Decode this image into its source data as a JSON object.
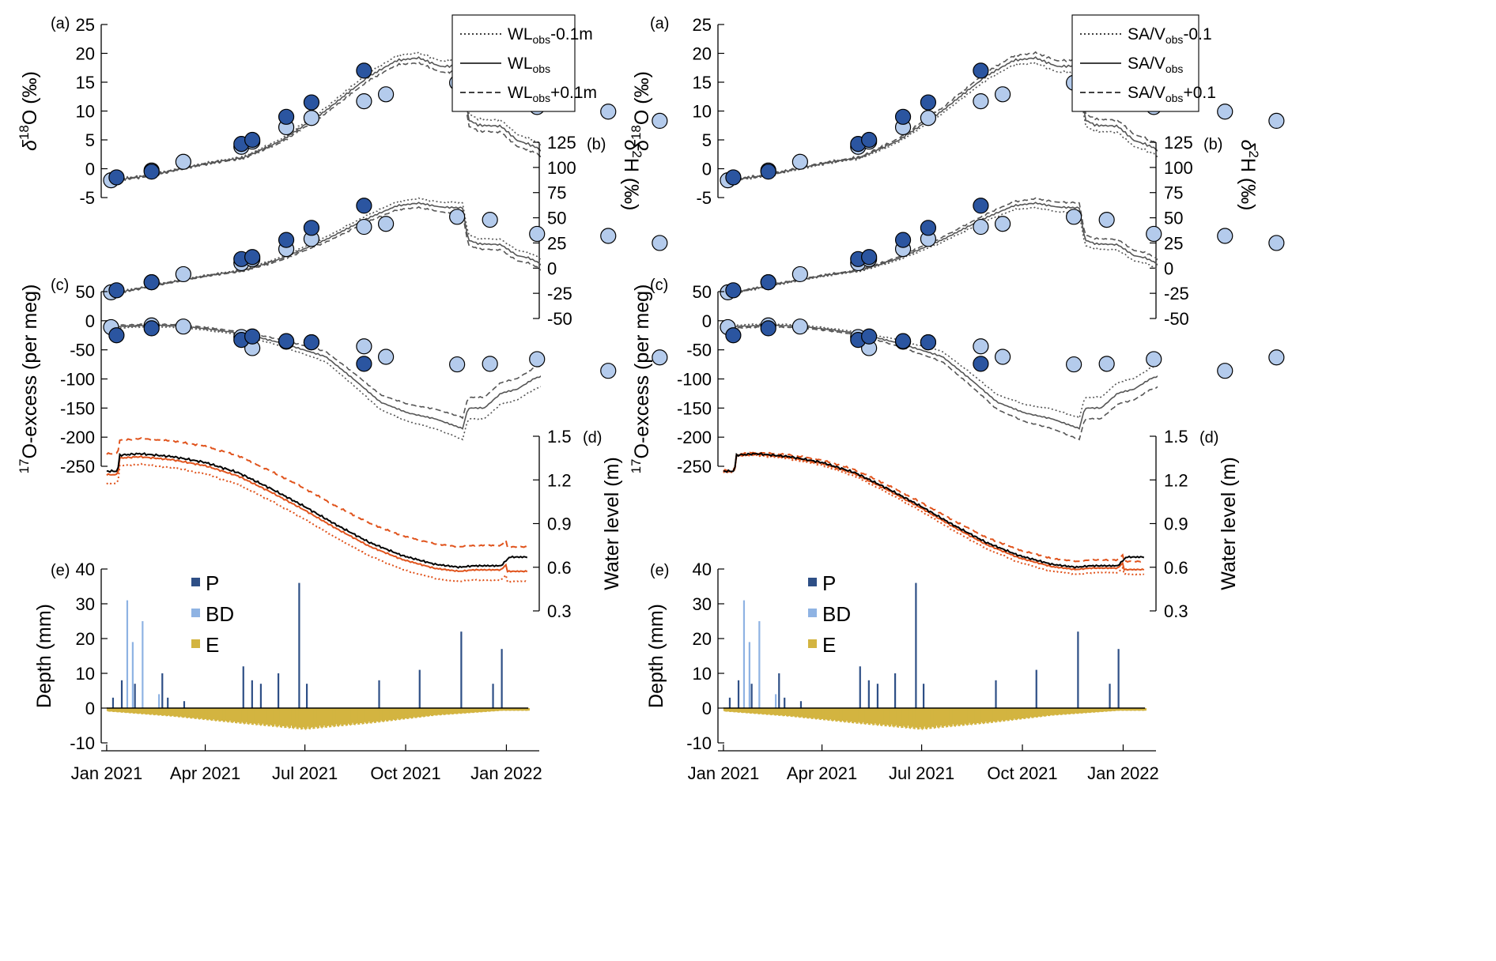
{
  "colors": {
    "dark_point": "#2b55a0",
    "light_point": "#b4cbec",
    "model_grey": "#555555",
    "observed_wl": "#000000",
    "model_wl": "#e0531c",
    "precip": "#2e4f86",
    "bd": "#8fb3e3",
    "evap": "#d3b440"
  },
  "time_axis": {
    "tick_labels": [
      "Jan 2021",
      "Apr 2021",
      "Jul 2021",
      "Oct 2021",
      "Jan 2022"
    ],
    "tick_days": [
      0,
      90,
      181,
      273,
      365
    ],
    "range_days": [
      -5,
      395
    ]
  },
  "panel_tags": {
    "a": "(a)",
    "b": "(b)",
    "c": "(c)",
    "d": "(d)",
    "e": "(e)"
  },
  "axes": {
    "d18O": {
      "label_prefix": "δ",
      "label_sup": "18",
      "label_suffix": "O (‰)",
      "ylim": [
        -5,
        25
      ],
      "ticks": [
        "-5",
        "0",
        "5",
        "10",
        "15",
        "20",
        "25"
      ],
      "tick_values": [
        -5,
        0,
        5,
        10,
        15,
        20,
        25
      ]
    },
    "d2H": {
      "label_prefix": "δ",
      "label_sup": "2",
      "label_suffix": "H (‰)",
      "ylim": [
        -50,
        125
      ],
      "ticks": [
        "-50",
        "-25",
        "0",
        "25",
        "50",
        "75",
        "100",
        "125"
      ],
      "tick_values": [
        -50,
        -25,
        0,
        25,
        50,
        75,
        100,
        125
      ]
    },
    "o17": {
      "label_sup": "17",
      "label_suffix": "O-excess (per meg)",
      "ylim": [
        -250,
        50
      ],
      "ticks": [
        "-250",
        "-200",
        "-150",
        "-100",
        "-50",
        "0",
        "50"
      ],
      "tick_values": [
        -250,
        -200,
        -150,
        -100,
        -50,
        0,
        50
      ]
    },
    "wl": {
      "label": "Water level (m)",
      "ylim": [
        0.3,
        1.5
      ],
      "ticks": [
        "0.3",
        "0.6",
        "0.9",
        "1.2",
        "1.5"
      ],
      "tick_values": [
        0.3,
        0.6,
        0.9,
        1.2,
        1.5
      ]
    },
    "depth": {
      "label": "Depth (mm)",
      "ylim": [
        -10,
        40
      ],
      "ticks": [
        "-10",
        "0",
        "10",
        "20",
        "30",
        "40"
      ],
      "tick_values": [
        -10,
        0,
        10,
        20,
        30,
        40
      ]
    }
  },
  "legend_isotopes_left": [
    {
      "main": "WL",
      "sub": "obs",
      "suffix": "-0.1m",
      "style": "dotted"
    },
    {
      "main": "WL",
      "sub": "obs",
      "suffix": "",
      "style": "solid"
    },
    {
      "main": "WL",
      "sub": "obs",
      "suffix": "+0.1m",
      "style": "dashed"
    }
  ],
  "legend_isotopes_right": [
    {
      "main": "SA/V",
      "sub": "obs",
      "suffix": "-0.1",
      "style": "dotted"
    },
    {
      "main": "SA/V",
      "sub": "obs",
      "suffix": "",
      "style": "solid"
    },
    {
      "main": "SA/V",
      "sub": "obs",
      "suffix": "+0.1",
      "style": "dashed"
    }
  ],
  "legend_flux": [
    {
      "label": "P",
      "color_key": "precip"
    },
    {
      "label": "BD",
      "color_key": "bd"
    },
    {
      "label": "E",
      "color_key": "evap"
    }
  ],
  "chart_data": [
    {
      "type": "scatter",
      "title": "(a) δ18O",
      "ylabel": "δ18O (‰)",
      "ylim": [
        -5,
        25
      ],
      "series": [
        {
          "name": "dark points",
          "x": [
            9,
            41,
            123,
            133,
            164,
            187,
            235
          ],
          "y": [
            -1.5,
            -0.5,
            4.3,
            5.0,
            9.0,
            11.5,
            17.0
          ]
        },
        {
          "name": "light points",
          "x": [
            4,
            41,
            70,
            123,
            133,
            164,
            187,
            235,
            255,
            320,
            350,
            393,
            458,
            505
          ],
          "y": [
            -2.0,
            -0.3,
            1.2,
            3.8,
            4.7,
            7.2,
            8.8,
            11.7,
            12.9,
            14.9,
            14.2,
            10.7,
            9.9,
            8.3
          ]
        }
      ]
    },
    {
      "type": "scatter",
      "title": "(b) δ2H",
      "ylabel": "δ2H (‰)",
      "ylim": [
        -50,
        125
      ],
      "series": [
        {
          "name": "dark points",
          "x": [
            9,
            41,
            123,
            133,
            164,
            187,
            235
          ],
          "y": [
            -22,
            -14,
            9,
            11,
            28,
            40,
            62
          ]
        },
        {
          "name": "light points",
          "x": [
            4,
            41,
            70,
            123,
            133,
            164,
            187,
            235,
            255,
            320,
            350,
            393,
            458,
            505
          ],
          "y": [
            -24,
            -14,
            -6,
            5,
            9,
            19,
            29,
            41,
            44,
            51,
            48,
            34,
            32,
            25
          ]
        }
      ]
    },
    {
      "type": "scatter",
      "title": "(c) 17O-excess",
      "ylabel": "17O-excess (per meg)",
      "ylim": [
        -250,
        50
      ],
      "series": [
        {
          "name": "dark points",
          "x": [
            9,
            41,
            123,
            133,
            164,
            187,
            235
          ],
          "y": [
            -25,
            -13,
            -33,
            -27,
            -35,
            -37,
            -74
          ]
        },
        {
          "name": "light points",
          "x": [
            4,
            41,
            70,
            123,
            133,
            164,
            187,
            235,
            255,
            320,
            350,
            393,
            458,
            505
          ],
          "y": [
            -11,
            -8,
            -10,
            -28,
            -47,
            -36,
            -37,
            -44,
            -62,
            -75,
            -74,
            -66,
            -86,
            -63
          ]
        }
      ]
    },
    {
      "type": "line",
      "title": "(d) Water level",
      "ylabel": "Water level (m)",
      "ylim": [
        0.3,
        1.5
      ],
      "series": [
        {
          "name": "observed",
          "x": [
            0,
            10,
            12,
            30,
            60,
            90,
            120,
            150,
            180,
            210,
            240,
            270,
            300,
            322,
            335,
            345,
            360,
            368,
            385
          ],
          "y": [
            1.26,
            1.26,
            1.37,
            1.38,
            1.36,
            1.32,
            1.25,
            1.14,
            1.02,
            0.89,
            0.77,
            0.68,
            0.62,
            0.6,
            0.61,
            0.61,
            0.61,
            0.67,
            0.67
          ]
        }
      ]
    },
    {
      "type": "bar",
      "title": "(e) Fluxes",
      "ylabel": "Depth (mm)",
      "ylim": [
        -10,
        40
      ],
      "series": [
        {
          "name": "P",
          "x": [
            5,
            13,
            25,
            50,
            55,
            70,
            124,
            132,
            140,
            156,
            175,
            182,
            248,
            285,
            323,
            352,
            360
          ],
          "y": [
            3,
            8,
            7,
            10,
            3,
            2,
            12,
            8,
            7,
            10,
            36,
            7,
            8,
            11,
            22,
            7,
            17
          ]
        },
        {
          "name": "BD",
          "x": [
            18,
            23,
            32,
            47
          ],
          "y": [
            31,
            19,
            25,
            4
          ]
        },
        {
          "name": "E",
          "x": [
            0,
            60,
            120,
            180,
            240,
            300,
            360
          ],
          "y": [
            -1,
            -2.5,
            -4.5,
            -6.3,
            -4.5,
            -2.2,
            -0.8
          ]
        }
      ]
    }
  ]
}
